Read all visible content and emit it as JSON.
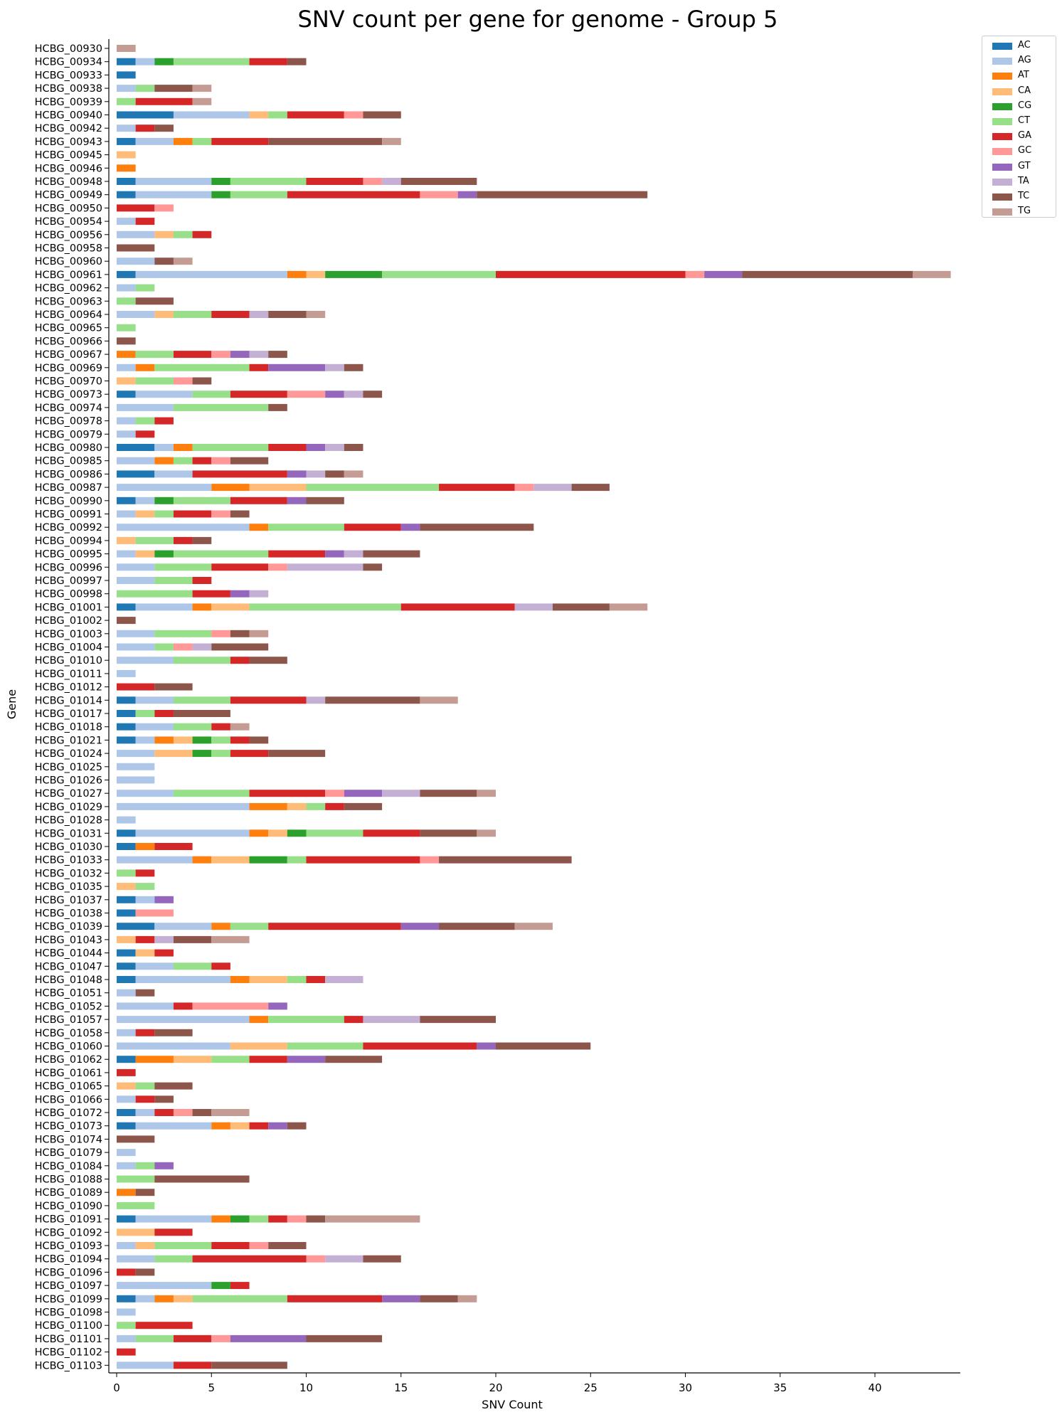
{
  "chart_data": {
    "type": "bar",
    "orientation": "horizontal",
    "stacked": true,
    "title": "SNV count per gene for genome - Group 5",
    "xlabel": "SNV Count",
    "ylabel": "Gene",
    "xlim": [
      0,
      44.6
    ],
    "xticks": [
      0,
      5,
      10,
      15,
      20,
      25,
      30,
      35,
      40
    ],
    "grid": false,
    "legend_position": "top-right outside",
    "series": [
      {
        "name": "AC",
        "color": "#1f77b4"
      },
      {
        "name": "AG",
        "color": "#aec7e8"
      },
      {
        "name": "AT",
        "color": "#ff7f0e"
      },
      {
        "name": "CA",
        "color": "#ffbb78"
      },
      {
        "name": "CG",
        "color": "#2ca02c"
      },
      {
        "name": "CT",
        "color": "#98df8a"
      },
      {
        "name": "GA",
        "color": "#d62728"
      },
      {
        "name": "GC",
        "color": "#ff9896"
      },
      {
        "name": "GT",
        "color": "#9467bd"
      },
      {
        "name": "TA",
        "color": "#c5b0d5"
      },
      {
        "name": "TC",
        "color": "#8c564b"
      },
      {
        "name": "TG",
        "color": "#c49c94"
      }
    ],
    "genes": [
      {
        "gene": "HCBG_00930",
        "counts": {
          "TG": 1
        }
      },
      {
        "gene": "HCBG_00934",
        "counts": {
          "AC": 1,
          "AG": 1,
          "CG": 1,
          "CT": 4,
          "GA": 2,
          "TC": 1
        }
      },
      {
        "gene": "HCBG_00933",
        "counts": {
          "AC": 1
        }
      },
      {
        "gene": "HCBG_00938",
        "counts": {
          "AG": 1,
          "CT": 1,
          "TC": 2,
          "TG": 1
        }
      },
      {
        "gene": "HCBG_00939",
        "counts": {
          "CT": 1,
          "GA": 3,
          "TG": 1
        }
      },
      {
        "gene": "HCBG_00940",
        "counts": {
          "AC": 3,
          "AG": 4,
          "CA": 1,
          "CT": 1,
          "GA": 3,
          "GC": 1,
          "TC": 2
        }
      },
      {
        "gene": "HCBG_00942",
        "counts": {
          "AG": 1,
          "GA": 1,
          "TC": 1
        }
      },
      {
        "gene": "HCBG_00943",
        "counts": {
          "AC": 1,
          "AG": 2,
          "AT": 1,
          "CT": 1,
          "GA": 3,
          "TC": 6,
          "TG": 1
        }
      },
      {
        "gene": "HCBG_00945",
        "counts": {
          "CA": 1
        }
      },
      {
        "gene": "HCBG_00946",
        "counts": {
          "AT": 1
        }
      },
      {
        "gene": "HCBG_00948",
        "counts": {
          "AC": 1,
          "AG": 4,
          "CG": 1,
          "CT": 4,
          "GA": 3,
          "GC": 1,
          "TA": 1,
          "TC": 4
        }
      },
      {
        "gene": "HCBG_00949",
        "counts": {
          "AC": 1,
          "AG": 4,
          "CG": 1,
          "CT": 3,
          "GA": 7,
          "GC": 2,
          "GT": 1,
          "TC": 9
        }
      },
      {
        "gene": "HCBG_00950",
        "counts": {
          "GA": 2,
          "GC": 1
        }
      },
      {
        "gene": "HCBG_00954",
        "counts": {
          "AG": 1,
          "GA": 1
        }
      },
      {
        "gene": "HCBG_00956",
        "counts": {
          "AG": 2,
          "CA": 1,
          "CT": 1,
          "GA": 1
        }
      },
      {
        "gene": "HCBG_00958",
        "counts": {
          "TC": 2
        }
      },
      {
        "gene": "HCBG_00960",
        "counts": {
          "AG": 2,
          "TC": 1,
          "TG": 1
        }
      },
      {
        "gene": "HCBG_00961",
        "counts": {
          "AC": 1,
          "AG": 8,
          "AT": 1,
          "CA": 1,
          "CG": 3,
          "CT": 6,
          "GA": 10,
          "GC": 1,
          "GT": 2,
          "TC": 9,
          "TG": 2
        }
      },
      {
        "gene": "HCBG_00962",
        "counts": {
          "AG": 1,
          "CT": 1
        }
      },
      {
        "gene": "HCBG_00963",
        "counts": {
          "CT": 1,
          "TC": 2
        }
      },
      {
        "gene": "HCBG_00964",
        "counts": {
          "AG": 2,
          "CA": 1,
          "CT": 2,
          "GA": 2,
          "TA": 1,
          "TC": 2,
          "TG": 1
        }
      },
      {
        "gene": "HCBG_00965",
        "counts": {
          "CT": 1
        }
      },
      {
        "gene": "HCBG_00966",
        "counts": {
          "TC": 1
        }
      },
      {
        "gene": "HCBG_00967",
        "counts": {
          "AT": 1,
          "CT": 2,
          "GA": 2,
          "GC": 1,
          "GT": 1,
          "TA": 1,
          "TC": 1
        }
      },
      {
        "gene": "HCBG_00969",
        "counts": {
          "AG": 1,
          "AT": 1,
          "CT": 5,
          "GA": 1,
          "GT": 3,
          "TA": 1,
          "TC": 1
        }
      },
      {
        "gene": "HCBG_00970",
        "counts": {
          "CA": 1,
          "CT": 2,
          "GC": 1,
          "TC": 1
        }
      },
      {
        "gene": "HCBG_00973",
        "counts": {
          "AC": 1,
          "AG": 3,
          "CT": 2,
          "GA": 3,
          "GC": 2,
          "GT": 1,
          "TA": 1,
          "TC": 1
        }
      },
      {
        "gene": "HCBG_00974",
        "counts": {
          "AG": 3,
          "CT": 5,
          "TC": 1
        }
      },
      {
        "gene": "HCBG_00978",
        "counts": {
          "AG": 1,
          "CT": 1,
          "GA": 1
        }
      },
      {
        "gene": "HCBG_00979",
        "counts": {
          "AG": 1,
          "GA": 1
        }
      },
      {
        "gene": "HCBG_00980",
        "counts": {
          "AC": 2,
          "AG": 1,
          "AT": 1,
          "CT": 4,
          "GA": 2,
          "GT": 1,
          "TA": 1,
          "TC": 1
        }
      },
      {
        "gene": "HCBG_00985",
        "counts": {
          "AG": 2,
          "AT": 1,
          "CT": 1,
          "GA": 1,
          "GC": 1,
          "TC": 2
        }
      },
      {
        "gene": "HCBG_00986",
        "counts": {
          "AC": 2,
          "AG": 2,
          "GA": 5,
          "GT": 1,
          "TA": 1,
          "TC": 1,
          "TG": 1
        }
      },
      {
        "gene": "HCBG_00987",
        "counts": {
          "AG": 5,
          "AT": 2,
          "CA": 3,
          "CT": 7,
          "GA": 4,
          "GC": 1,
          "TA": 2,
          "TC": 2
        }
      },
      {
        "gene": "HCBG_00990",
        "counts": {
          "AC": 1,
          "AG": 1,
          "CG": 1,
          "CT": 3,
          "GA": 3,
          "GT": 1,
          "TC": 2
        }
      },
      {
        "gene": "HCBG_00991",
        "counts": {
          "AG": 1,
          "CA": 1,
          "CT": 1,
          "GA": 2,
          "GC": 1,
          "TC": 1
        }
      },
      {
        "gene": "HCBG_00992",
        "counts": {
          "AG": 7,
          "AT": 1,
          "CT": 4,
          "GA": 3,
          "GT": 1,
          "TC": 6
        }
      },
      {
        "gene": "HCBG_00994",
        "counts": {
          "CA": 1,
          "CT": 2,
          "GA": 1,
          "TC": 1
        }
      },
      {
        "gene": "HCBG_00995",
        "counts": {
          "AG": 1,
          "CA": 1,
          "CG": 1,
          "CT": 5,
          "GA": 3,
          "GT": 1,
          "TA": 1,
          "TC": 3
        }
      },
      {
        "gene": "HCBG_00996",
        "counts": {
          "AG": 2,
          "CT": 3,
          "GA": 3,
          "GC": 1,
          "TA": 4,
          "TC": 1
        }
      },
      {
        "gene": "HCBG_00997",
        "counts": {
          "AG": 2,
          "CT": 2,
          "GA": 1
        }
      },
      {
        "gene": "HCBG_00998",
        "counts": {
          "CT": 4,
          "GA": 2,
          "GT": 1,
          "TA": 1
        }
      },
      {
        "gene": "HCBG_01001",
        "counts": {
          "AC": 1,
          "AG": 3,
          "AT": 1,
          "CA": 2,
          "CT": 8,
          "GA": 6,
          "TA": 2,
          "TC": 3,
          "TG": 2
        }
      },
      {
        "gene": "HCBG_01002",
        "counts": {
          "TC": 1
        }
      },
      {
        "gene": "HCBG_01003",
        "counts": {
          "AG": 2,
          "CT": 3,
          "GC": 1,
          "TC": 1,
          "TG": 1
        }
      },
      {
        "gene": "HCBG_01004",
        "counts": {
          "AG": 2,
          "CT": 1,
          "GC": 1,
          "TA": 1,
          "TC": 3
        }
      },
      {
        "gene": "HCBG_01010",
        "counts": {
          "AG": 3,
          "CT": 3,
          "GA": 1,
          "TC": 2
        }
      },
      {
        "gene": "HCBG_01011",
        "counts": {
          "AG": 1
        }
      },
      {
        "gene": "HCBG_01012",
        "counts": {
          "GA": 2,
          "TC": 2
        }
      },
      {
        "gene": "HCBG_01014",
        "counts": {
          "AC": 1,
          "AG": 2,
          "CT": 3,
          "GA": 4,
          "TA": 1,
          "TC": 5,
          "TG": 2
        }
      },
      {
        "gene": "HCBG_01017",
        "counts": {
          "AC": 1,
          "CT": 1,
          "GA": 1,
          "TC": 3
        }
      },
      {
        "gene": "HCBG_01018",
        "counts": {
          "AC": 1,
          "AG": 2,
          "CT": 2,
          "GA": 1,
          "TG": 1
        }
      },
      {
        "gene": "HCBG_01021",
        "counts": {
          "AC": 1,
          "AG": 1,
          "AT": 1,
          "CA": 1,
          "CG": 1,
          "CT": 1,
          "GA": 1,
          "TC": 1
        }
      },
      {
        "gene": "HCBG_01024",
        "counts": {
          "AG": 2,
          "CA": 2,
          "CG": 1,
          "CT": 1,
          "GA": 2,
          "TC": 3
        }
      },
      {
        "gene": "HCBG_01025",
        "counts": {
          "AG": 2
        }
      },
      {
        "gene": "HCBG_01026",
        "counts": {
          "AG": 2
        }
      },
      {
        "gene": "HCBG_01027",
        "counts": {
          "AG": 3,
          "CT": 4,
          "GA": 4,
          "GC": 1,
          "GT": 2,
          "TA": 2,
          "TC": 3,
          "TG": 1
        }
      },
      {
        "gene": "HCBG_01029",
        "counts": {
          "AG": 7,
          "AT": 2,
          "CA": 1,
          "CT": 1,
          "GA": 1,
          "TC": 2
        }
      },
      {
        "gene": "HCBG_01028",
        "counts": {
          "AG": 1
        }
      },
      {
        "gene": "HCBG_01031",
        "counts": {
          "AC": 1,
          "AG": 6,
          "AT": 1,
          "CA": 1,
          "CG": 1,
          "CT": 3,
          "GA": 3,
          "TC": 3,
          "TG": 1
        }
      },
      {
        "gene": "HCBG_01030",
        "counts": {
          "AC": 1,
          "AT": 1,
          "GA": 2
        }
      },
      {
        "gene": "HCBG_01033",
        "counts": {
          "AG": 4,
          "AT": 1,
          "CA": 2,
          "CG": 2,
          "CT": 1,
          "GA": 6,
          "GC": 1,
          "TC": 7
        }
      },
      {
        "gene": "HCBG_01032",
        "counts": {
          "CT": 1,
          "GA": 1
        }
      },
      {
        "gene": "HCBG_01035",
        "counts": {
          "CA": 1,
          "CT": 1
        }
      },
      {
        "gene": "HCBG_01037",
        "counts": {
          "AC": 1,
          "AG": 1,
          "GT": 1
        }
      },
      {
        "gene": "HCBG_01038",
        "counts": {
          "AC": 1,
          "GC": 2
        }
      },
      {
        "gene": "HCBG_01039",
        "counts": {
          "AC": 2,
          "AG": 3,
          "AT": 1,
          "CT": 2,
          "GA": 7,
          "GT": 2,
          "TC": 4,
          "TG": 2
        }
      },
      {
        "gene": "HCBG_01043",
        "counts": {
          "CA": 1,
          "GA": 1,
          "TA": 1,
          "TC": 2,
          "TG": 2
        }
      },
      {
        "gene": "HCBG_01044",
        "counts": {
          "AC": 1,
          "CA": 1,
          "GA": 1
        }
      },
      {
        "gene": "HCBG_01047",
        "counts": {
          "AC": 1,
          "AG": 2,
          "CT": 2,
          "GA": 1
        }
      },
      {
        "gene": "HCBG_01048",
        "counts": {
          "AC": 1,
          "AG": 5,
          "AT": 1,
          "CA": 2,
          "CT": 1,
          "GA": 1,
          "TA": 2
        }
      },
      {
        "gene": "HCBG_01051",
        "counts": {
          "AG": 1,
          "TC": 1
        }
      },
      {
        "gene": "HCBG_01052",
        "counts": {
          "AG": 3,
          "GA": 1,
          "GC": 4,
          "GT": 1
        }
      },
      {
        "gene": "HCBG_01057",
        "counts": {
          "AG": 7,
          "AT": 1,
          "CT": 4,
          "GA": 1,
          "TA": 3,
          "TC": 4
        }
      },
      {
        "gene": "HCBG_01058",
        "counts": {
          "AG": 1,
          "GA": 1,
          "TC": 2
        }
      },
      {
        "gene": "HCBG_01060",
        "counts": {
          "AG": 6,
          "CA": 3,
          "CT": 4,
          "GA": 6,
          "GT": 1,
          "TC": 5
        }
      },
      {
        "gene": "HCBG_01062",
        "counts": {
          "AC": 1,
          "AT": 2,
          "CA": 2,
          "CT": 2,
          "GA": 2,
          "GT": 2,
          "TC": 3
        }
      },
      {
        "gene": "HCBG_01061",
        "counts": {
          "GA": 1
        }
      },
      {
        "gene": "HCBG_01065",
        "counts": {
          "CA": 1,
          "CT": 1,
          "TC": 2
        }
      },
      {
        "gene": "HCBG_01066",
        "counts": {
          "AG": 1,
          "GA": 1,
          "TC": 1
        }
      },
      {
        "gene": "HCBG_01072",
        "counts": {
          "AC": 1,
          "AG": 1,
          "GA": 1,
          "GC": 1,
          "TC": 1,
          "TG": 2
        }
      },
      {
        "gene": "HCBG_01073",
        "counts": {
          "AC": 1,
          "AG": 4,
          "AT": 1,
          "CA": 1,
          "GA": 1,
          "GT": 1,
          "TC": 1
        }
      },
      {
        "gene": "HCBG_01074",
        "counts": {
          "TC": 2
        }
      },
      {
        "gene": "HCBG_01079",
        "counts": {
          "AG": 1
        }
      },
      {
        "gene": "HCBG_01084",
        "counts": {
          "AG": 1,
          "CT": 1,
          "GT": 1
        }
      },
      {
        "gene": "HCBG_01088",
        "counts": {
          "CT": 2,
          "TC": 5
        }
      },
      {
        "gene": "HCBG_01089",
        "counts": {
          "AT": 1,
          "TC": 1
        }
      },
      {
        "gene": "HCBG_01090",
        "counts": {
          "CT": 2
        }
      },
      {
        "gene": "HCBG_01091",
        "counts": {
          "AC": 1,
          "AG": 4,
          "AT": 1,
          "CG": 1,
          "CT": 1,
          "GA": 1,
          "GC": 1,
          "TC": 1,
          "TG": 5
        }
      },
      {
        "gene": "HCBG_01092",
        "counts": {
          "CA": 2,
          "GA": 2
        }
      },
      {
        "gene": "HCBG_01093",
        "counts": {
          "AG": 1,
          "CA": 1,
          "CT": 3,
          "GA": 2,
          "GC": 1,
          "TC": 2
        }
      },
      {
        "gene": "HCBG_01094",
        "counts": {
          "AG": 2,
          "CT": 2,
          "GA": 6,
          "GC": 1,
          "TA": 2,
          "TC": 2
        }
      },
      {
        "gene": "HCBG_01096",
        "counts": {
          "GA": 1,
          "TC": 1
        }
      },
      {
        "gene": "HCBG_01097",
        "counts": {
          "AG": 5,
          "CG": 1,
          "GA": 1
        }
      },
      {
        "gene": "HCBG_01099",
        "counts": {
          "AC": 1,
          "AG": 1,
          "AT": 1,
          "CA": 1,
          "CT": 5,
          "GA": 5,
          "GT": 2,
          "TC": 2,
          "TG": 1
        }
      },
      {
        "gene": "HCBG_01098",
        "counts": {
          "AG": 1
        }
      },
      {
        "gene": "HCBG_01100",
        "counts": {
          "CT": 1,
          "GA": 3
        }
      },
      {
        "gene": "HCBG_01101",
        "counts": {
          "AG": 1,
          "CT": 2,
          "GA": 2,
          "GC": 1,
          "GT": 4,
          "TC": 4
        }
      },
      {
        "gene": "HCBG_01102",
        "counts": {
          "GA": 1
        }
      },
      {
        "gene": "HCBG_01103",
        "counts": {
          "AG": 3,
          "GA": 2,
          "TC": 4
        }
      }
    ]
  }
}
